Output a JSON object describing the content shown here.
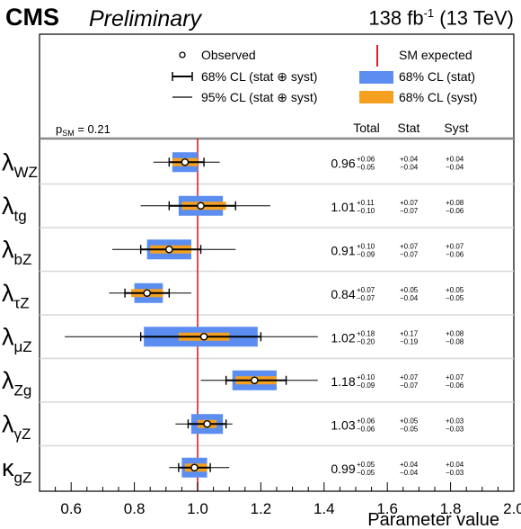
{
  "header": {
    "experiment": "CMS",
    "status": "Preliminary",
    "lumi": "138 fb",
    "lumi_exp": "-1",
    "energy": "(13 TeV)"
  },
  "legend": {
    "observed": "Observed",
    "cl68": "68% CL (stat ⊕ syst)",
    "cl95": "95% CL (stat ⊕ syst)",
    "sm": "SM expected",
    "stat": "68% CL (stat)",
    "syst": "68% CL (syst)"
  },
  "columns": {
    "psm_label": "p",
    "psm_sub": "SM",
    "psm_value": "= 0.21",
    "total": "Total",
    "stat": "Stat",
    "syst": "Syst"
  },
  "chart_data": {
    "type": "scatter",
    "xlabel": "Parameter value",
    "xlim": [
      0.5,
      2.0
    ],
    "xticks": [
      "0.6",
      "0.8",
      "1.0",
      "1.2",
      "1.4",
      "1.6",
      "1.8",
      "2.0"
    ],
    "sm_value": 1.0,
    "parameters": [
      {
        "name": "λ",
        "sub": "WZ",
        "value": 0.96,
        "val_text": "0.96",
        "tot_up": "+0.06",
        "tot_dn": "−0.05",
        "stat_up": "+0.04",
        "stat_dn": "−0.04",
        "syst_up": "+0.04",
        "syst_dn": "−0.04",
        "cl68": [
          0.91,
          1.02
        ],
        "cl95": [
          0.86,
          1.07
        ],
        "stat_band": [
          0.92,
          1.0
        ],
        "syst_band": [
          0.92,
          1.0
        ]
      },
      {
        "name": "λ",
        "sub": "tg",
        "value": 1.01,
        "val_text": "1.01",
        "tot_up": "+0.11",
        "tot_dn": "−0.10",
        "stat_up": "+0.07",
        "stat_dn": "−0.07",
        "syst_up": "+0.08",
        "syst_dn": "−0.06",
        "cl68": [
          0.91,
          1.12
        ],
        "cl95": [
          0.82,
          1.23
        ],
        "stat_band": [
          0.94,
          1.08
        ],
        "syst_band": [
          0.95,
          1.09
        ]
      },
      {
        "name": "λ",
        "sub": "bZ",
        "value": 0.91,
        "val_text": "0.91",
        "tot_up": "+0.10",
        "tot_dn": "−0.09",
        "stat_up": "+0.07",
        "stat_dn": "−0.07",
        "syst_up": "+0.07",
        "syst_dn": "−0.06",
        "cl68": [
          0.82,
          1.01
        ],
        "cl95": [
          0.73,
          1.12
        ],
        "stat_band": [
          0.84,
          0.98
        ],
        "syst_band": [
          0.85,
          0.98
        ]
      },
      {
        "name": "λ",
        "sub": "τZ",
        "value": 0.84,
        "val_text": "0.84",
        "tot_up": "+0.07",
        "tot_dn": "−0.07",
        "stat_up": "+0.05",
        "stat_dn": "−0.04",
        "syst_up": "+0.05",
        "syst_dn": "−0.05",
        "cl68": [
          0.77,
          0.91
        ],
        "cl95": [
          0.72,
          0.98
        ],
        "stat_band": [
          0.8,
          0.89
        ],
        "syst_band": [
          0.79,
          0.89
        ]
      },
      {
        "name": "λ",
        "sub": "μZ",
        "value": 1.02,
        "val_text": "1.02",
        "tot_up": "+0.18",
        "tot_dn": "−0.20",
        "stat_up": "+0.17",
        "stat_dn": "−0.19",
        "syst_up": "+0.08",
        "syst_dn": "−0.08",
        "cl68": [
          0.82,
          1.2
        ],
        "cl95": [
          0.58,
          1.38
        ],
        "stat_band": [
          0.83,
          1.19
        ],
        "syst_band": [
          0.94,
          1.1
        ]
      },
      {
        "name": "λ",
        "sub": "Zg",
        "value": 1.18,
        "val_text": "1.18",
        "tot_up": "+0.10",
        "tot_dn": "−0.09",
        "stat_up": "+0.07",
        "stat_dn": "−0.07",
        "syst_up": "+0.07",
        "syst_dn": "−0.06",
        "cl68": [
          1.09,
          1.28
        ],
        "cl95": [
          1.01,
          1.38
        ],
        "stat_band": [
          1.11,
          1.25
        ],
        "syst_band": [
          1.12,
          1.25
        ]
      },
      {
        "name": "λ",
        "sub": "γZ",
        "value": 1.03,
        "val_text": "1.03",
        "tot_up": "+0.06",
        "tot_dn": "−0.06",
        "stat_up": "+0.05",
        "stat_dn": "−0.05",
        "syst_up": "+0.03",
        "syst_dn": "−0.03",
        "cl68": [
          0.97,
          1.09
        ],
        "cl95": [
          0.93,
          1.11
        ],
        "stat_band": [
          0.98,
          1.08
        ],
        "syst_band": [
          1.0,
          1.06
        ]
      },
      {
        "name": "κ",
        "sub": "gZ",
        "value": 0.99,
        "val_text": "0.99",
        "tot_up": "+0.05",
        "tot_dn": "−0.05",
        "stat_up": "+0.04",
        "stat_dn": "−0.04",
        "syst_up": "+0.04",
        "syst_dn": "−0.03",
        "cl68": [
          0.94,
          1.04
        ],
        "cl95": [
          0.91,
          1.1
        ],
        "stat_band": [
          0.95,
          1.03
        ],
        "syst_band": [
          0.96,
          1.03
        ]
      }
    ],
    "colors": {
      "stat": "#5b8ef0",
      "syst": "#f5a020",
      "sm_line": "#d8202a",
      "row_sep": "#d8d8d8"
    }
  }
}
